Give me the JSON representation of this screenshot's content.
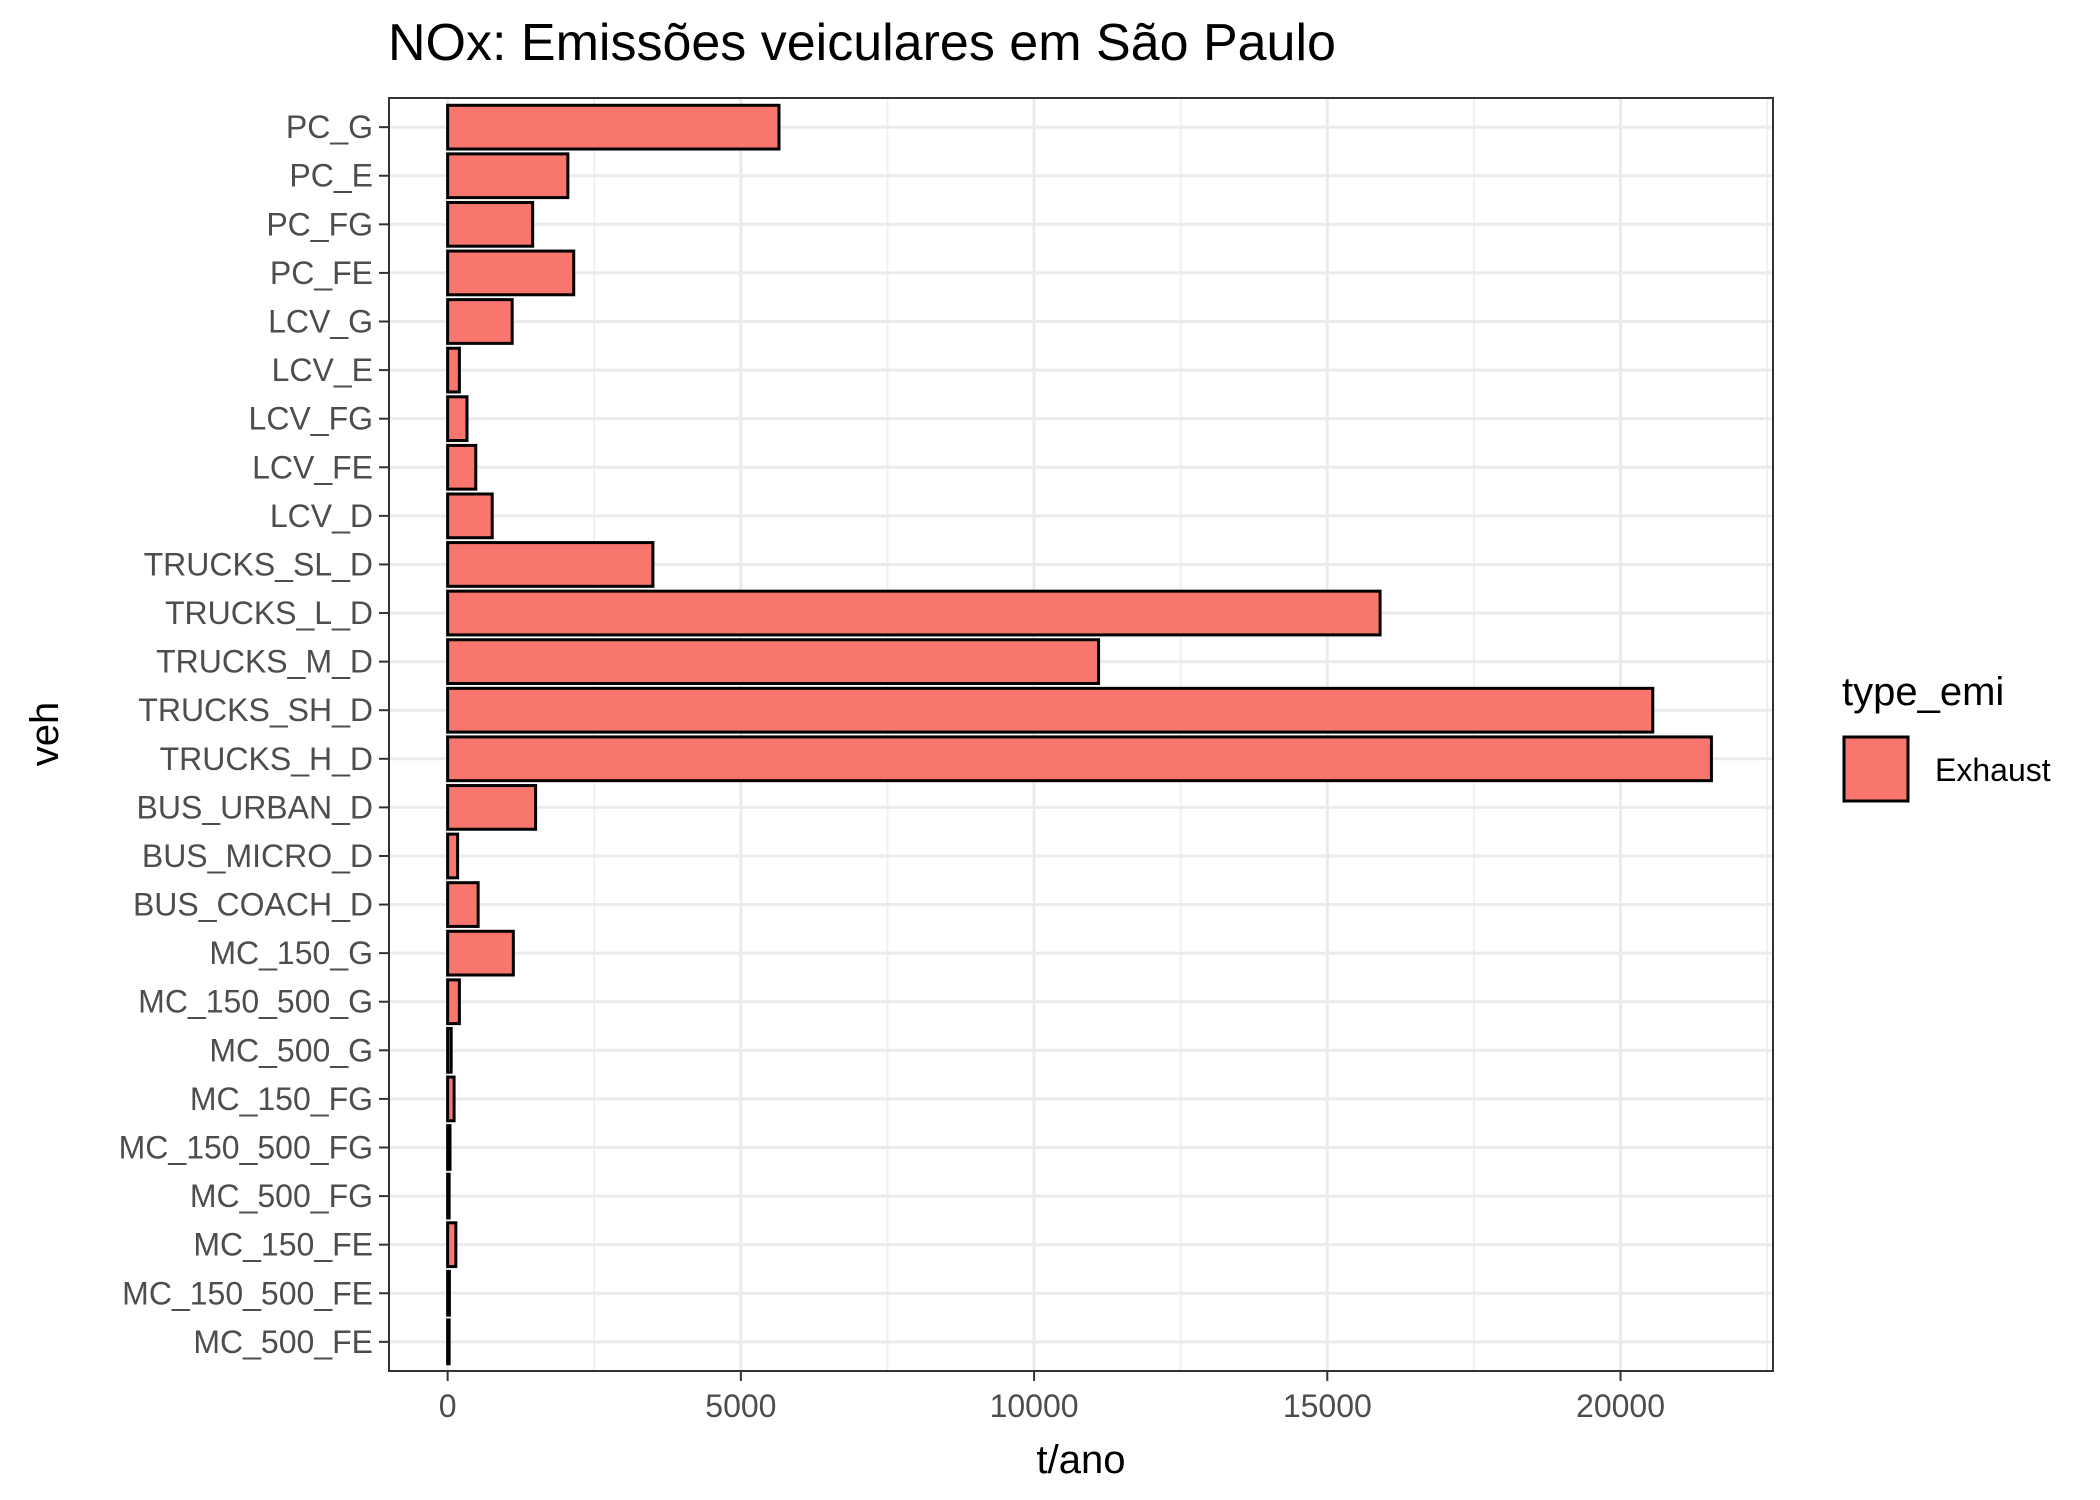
{
  "chart_data": {
    "type": "bar",
    "orientation": "horizontal",
    "title": "NOx: Emissões veiculares em São Paulo",
    "xlabel": "t/ano",
    "ylabel": "veh",
    "xlim": [
      -1000,
      22600
    ],
    "xticks": [
      0,
      5000,
      10000,
      15000,
      20000
    ],
    "xtick_labels": [
      "0",
      "5000",
      "10000",
      "15000",
      "20000"
    ],
    "grid": true,
    "categories": [
      "PC_G",
      "PC_E",
      "PC_FG",
      "PC_FE",
      "LCV_G",
      "LCV_E",
      "LCV_FG",
      "LCV_FE",
      "LCV_D",
      "TRUCKS_SL_D",
      "TRUCKS_L_D",
      "TRUCKS_M_D",
      "TRUCKS_SH_D",
      "TRUCKS_H_D",
      "BUS_URBAN_D",
      "BUS_MICRO_D",
      "BUS_COACH_D",
      "MC_150_G",
      "MC_150_500_G",
      "MC_500_G",
      "MC_150_FG",
      "MC_150_500_FG",
      "MC_500_FG",
      "MC_150_FE",
      "MC_150_500_FE",
      "MC_500_FE"
    ],
    "series": [
      {
        "name": "Exhaust",
        "color": "#F8766D",
        "values": [
          5650,
          2050,
          1450,
          2150,
          1100,
          200,
          330,
          480,
          760,
          3500,
          15900,
          11100,
          20550,
          21550,
          1500,
          170,
          520,
          1120,
          200,
          60,
          110,
          40,
          20,
          140,
          30,
          20
        ]
      }
    ],
    "legend": {
      "title": "type_emi",
      "position": "right",
      "entries": [
        "Exhaust"
      ]
    }
  }
}
